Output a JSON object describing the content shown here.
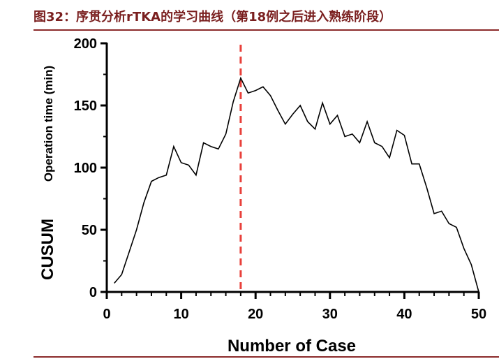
{
  "figure": {
    "title": "图32：序贯分析rTKA的学习曲线（第18例之后进入熟练阶段）"
  },
  "chart_data": {
    "type": "line",
    "xlabel": "Number of Case",
    "ylabel_main": "CUSUM",
    "ylabel_sub": "Operation time (min)",
    "xlim": [
      0,
      50
    ],
    "ylim": [
      0,
      200
    ],
    "x_ticks": [
      0,
      10,
      20,
      30,
      40,
      50
    ],
    "y_ticks": [
      0,
      50,
      100,
      150,
      200
    ],
    "grid": false,
    "series": [
      {
        "color": "#000000",
        "x": [
          1,
          2,
          3,
          4,
          5,
          6,
          7,
          8,
          9,
          10,
          11,
          12,
          13,
          14,
          15,
          16,
          17,
          18,
          19,
          20,
          21,
          22,
          23,
          24,
          25,
          26,
          27,
          28,
          29,
          30,
          31,
          32,
          33,
          34,
          35,
          36,
          37,
          38,
          39,
          40,
          41,
          42,
          43,
          44,
          45,
          46,
          47,
          48,
          49,
          50
        ],
        "y": [
          7,
          14,
          32,
          50,
          72,
          89,
          92,
          94,
          117,
          104,
          102,
          94,
          120,
          117,
          115,
          127,
          153,
          172,
          160,
          162,
          165,
          158,
          146,
          135,
          143,
          150,
          137,
          131,
          152,
          135,
          142,
          125,
          127,
          120,
          137,
          120,
          117,
          108,
          130,
          126,
          103,
          103,
          84,
          63,
          65,
          55,
          52,
          35,
          22,
          0
        ]
      }
    ],
    "reference_line": {
      "x": 18,
      "color": "#e8403a",
      "style": "dashed"
    }
  }
}
